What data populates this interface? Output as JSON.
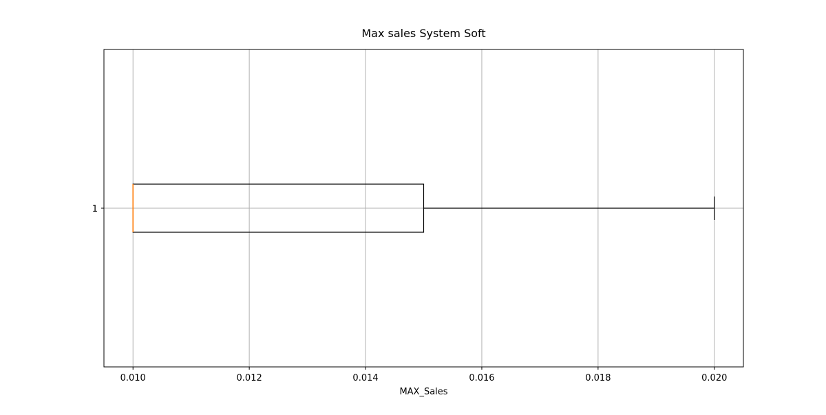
{
  "chart_data": {
    "type": "boxplot",
    "orientation": "horizontal",
    "title": "Max sales System Soft",
    "xlabel": "MAX_Sales",
    "ylabel": "",
    "xlim": [
      0.0095,
      0.0205
    ],
    "x_ticks": [
      0.01,
      0.012,
      0.014,
      0.016,
      0.018,
      0.02
    ],
    "x_tick_labels": [
      "0.010",
      "0.012",
      "0.014",
      "0.016",
      "0.018",
      "0.020"
    ],
    "categories": [
      "1"
    ],
    "boxes": [
      {
        "category": "1",
        "whisker_low": 0.01,
        "q1": 0.01,
        "median": 0.01,
        "q3": 0.015,
        "whisker_high": 0.02,
        "outliers": []
      }
    ],
    "grid": true,
    "colors": {
      "box": "#000000",
      "median": "#ff7f0e",
      "grid": "#b0b0b0"
    }
  }
}
